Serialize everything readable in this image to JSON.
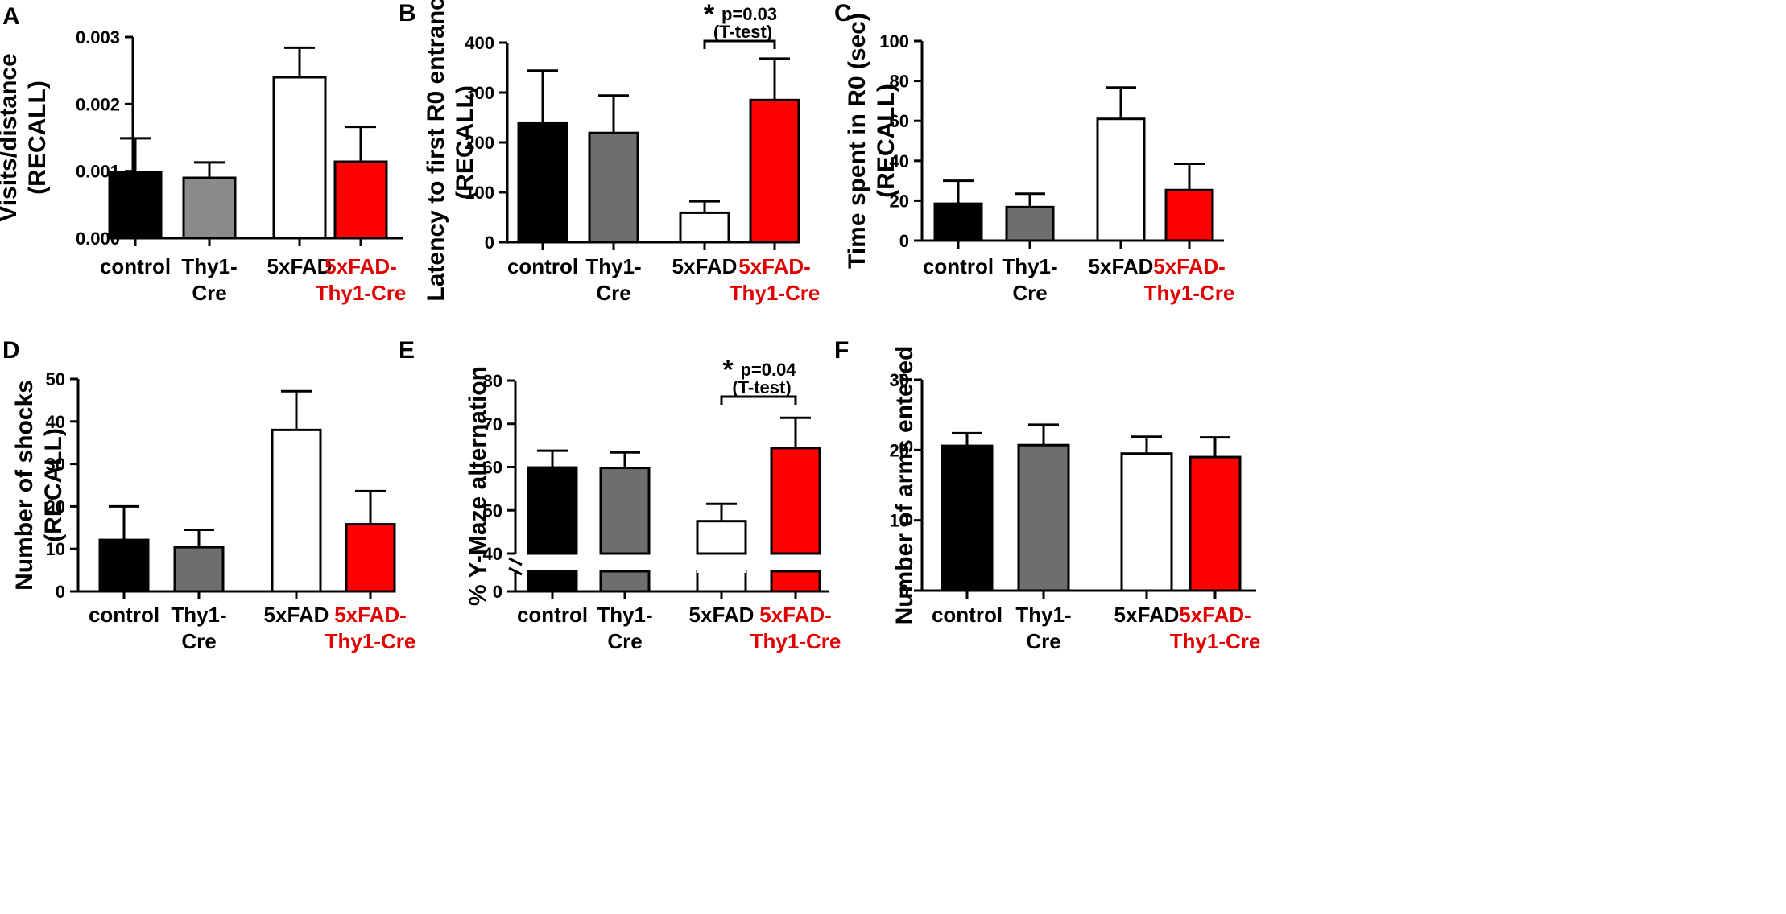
{
  "colors": {
    "control": "#000000",
    "thy1_cre_dark": "#8a8a8a",
    "thy1_cre": "#6e6e6e",
    "fad": "#ffffff",
    "fad_thy1": "#ff0000",
    "highlight_label": "#e00000"
  },
  "chart_data": [
    {
      "type": "bar",
      "panel": "A",
      "ylabel": [
        "Visits/distance",
        "(RECALL)"
      ],
      "categories": [
        [
          "control"
        ],
        [
          "Thy1-",
          "Cre"
        ],
        [
          "5xFAD"
        ],
        [
          "5xFAD-",
          "Thy1-Cre"
        ]
      ],
      "values": [
        0.00098,
        0.0009,
        0.0024,
        0.00114
      ],
      "errors": [
        0.00051,
        0.00023,
        0.00044,
        0.00052
      ],
      "ylim": [
        0,
        0.003
      ],
      "yticks": [
        0,
        0.001,
        0.002,
        0.003
      ],
      "ytick_labels": [
        "0.000",
        "0.001",
        "0.002",
        "0.003"
      ]
    },
    {
      "type": "bar",
      "panel": "B",
      "ylabel": [
        "Latency to first R0 entrance",
        "(RECALL)"
      ],
      "categories": [
        [
          "control"
        ],
        [
          "Thy1-",
          "Cre"
        ],
        [
          "5xFAD"
        ],
        [
          "5xFAD-",
          "Thy1-Cre"
        ]
      ],
      "values": [
        238,
        219,
        59,
        285
      ],
      "errors": [
        106,
        75,
        23,
        83
      ],
      "ylim": [
        0,
        400
      ],
      "yticks": [
        0,
        100,
        200,
        300,
        400
      ],
      "ytick_labels": [
        "0",
        "100",
        "200",
        "300",
        "400"
      ],
      "annotation": {
        "star": "*",
        "p": "p=0.03",
        "test": "(T-test)"
      }
    },
    {
      "type": "bar",
      "panel": "C",
      "ylabel": [
        "Time spent in R0 (sec)",
        "(RECALL)"
      ],
      "categories": [
        [
          "control"
        ],
        [
          "Thy1-",
          "Cre"
        ],
        [
          "5xFAD"
        ],
        [
          "5xFAD-",
          "Thy1-Cre"
        ]
      ],
      "values": [
        18.5,
        16.8,
        61,
        25.3
      ],
      "errors": [
        11.5,
        6.7,
        15.7,
        13.2
      ],
      "ylim": [
        0,
        100
      ],
      "yticks": [
        0,
        20,
        40,
        60,
        80,
        100
      ],
      "ytick_labels": [
        "0",
        "20",
        "40",
        "60",
        "80",
        "100"
      ]
    },
    {
      "type": "bar",
      "panel": "D",
      "ylabel": [
        "Number of shocks",
        "(RECALL)"
      ],
      "categories": [
        [
          "control"
        ],
        [
          "Thy1-",
          "Cre"
        ],
        [
          "5xFAD"
        ],
        [
          "5xFAD-",
          "Thy1-Cre"
        ]
      ],
      "values": [
        12.1,
        10.4,
        38,
        15.8
      ],
      "errors": [
        7.9,
        4.1,
        9.1,
        7.8
      ],
      "ylim": [
        0,
        50
      ],
      "yticks": [
        0,
        10,
        20,
        30,
        40,
        50
      ],
      "ytick_labels": [
        "0",
        "10",
        "20",
        "30",
        "40",
        "50"
      ]
    },
    {
      "type": "bar",
      "panel": "E",
      "ylabel": [
        "% Y-Maze alternation"
      ],
      "categories": [
        [
          "control"
        ],
        [
          "Thy1-",
          "Cre"
        ],
        [
          "5xFAD"
        ],
        [
          "5xFAD-",
          "Thy1-Cre"
        ]
      ],
      "values": [
        59.9,
        59.8,
        47.5,
        64.4
      ],
      "errors": [
        3.9,
        3.6,
        4.0,
        7.0
      ],
      "ylim": [
        40,
        80
      ],
      "axis_break": [
        0,
        40
      ],
      "yticks": [
        0,
        40,
        50,
        60,
        70,
        80
      ],
      "ytick_labels": [
        "0",
        "40",
        "50",
        "60",
        "70",
        "80"
      ],
      "annotation": {
        "star": "*",
        "p": "p=0.04",
        "test": "(T-test)"
      }
    },
    {
      "type": "bar",
      "panel": "F",
      "ylabel": [
        "Number of arms entered"
      ],
      "categories": [
        [
          "control"
        ],
        [
          "Thy1-",
          "Cre"
        ],
        [
          "5xFAD"
        ],
        [
          "5xFAD-",
          "Thy1-Cre"
        ]
      ],
      "values": [
        20.6,
        20.7,
        19.5,
        19.0
      ],
      "errors": [
        1.8,
        2.9,
        2.4,
        2.8
      ],
      "ylim": [
        0,
        30
      ],
      "yticks": [
        0,
        10,
        20,
        30
      ],
      "ytick_labels": [
        "0",
        "10",
        "20",
        "30"
      ]
    }
  ]
}
